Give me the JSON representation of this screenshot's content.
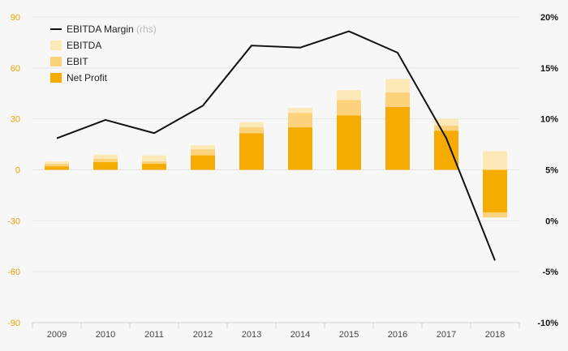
{
  "chart_data": {
    "type": "bar",
    "categories": [
      "2009",
      "2010",
      "2011",
      "2012",
      "2013",
      "2014",
      "2015",
      "2016",
      "2017",
      "2018"
    ],
    "series": [
      {
        "name": "EBITDA",
        "type": "bar",
        "axis": "left",
        "values": [
          5,
          9,
          8.5,
          14.5,
          28,
          36.5,
          47,
          53.5,
          30,
          11
        ],
        "negative_values": [
          0,
          0,
          0,
          0,
          0,
          0,
          0,
          0,
          0,
          -28
        ]
      },
      {
        "name": "EBIT",
        "type": "bar",
        "axis": "left",
        "values": [
          3.5,
          6.5,
          5,
          12,
          25,
          33.5,
          41,
          45.5,
          26,
          0
        ],
        "negative_values": [
          0,
          0,
          0,
          0,
          0,
          0,
          0,
          0,
          0,
          -28
        ]
      },
      {
        "name": "Net Profit",
        "type": "bar",
        "axis": "left",
        "values": [
          2,
          4.5,
          3.5,
          8.5,
          21.5,
          25,
          32,
          37,
          23,
          0
        ],
        "negative_values": [
          0,
          0,
          0,
          0,
          0,
          0,
          0,
          0,
          0,
          -25
        ]
      },
      {
        "name": "EBITDA Margin",
        "type": "line",
        "axis": "right",
        "values": [
          8.1,
          9.9,
          8.6,
          11.3,
          17.2,
          17.0,
          18.6,
          16.5,
          8.1,
          -3.9
        ]
      }
    ],
    "legend": {
      "placement": "top-left",
      "items": [
        {
          "label": "EBITDA Margin",
          "note": "(rhs)",
          "kind": "line",
          "color": "#111111"
        },
        {
          "label": "EBITDA",
          "kind": "box",
          "color": "#fde8b8"
        },
        {
          "label": "EBIT",
          "kind": "box",
          "color": "#fcd27a"
        },
        {
          "label": "Net Profit",
          "kind": "box",
          "color": "#f5ab00"
        }
      ]
    },
    "y_left": {
      "min": -90,
      "max": 90,
      "ticks": [
        90,
        60,
        30,
        0,
        -30,
        -60,
        -90
      ],
      "tick_labels": [
        "90",
        "60",
        "30",
        "0",
        "-30",
        "-60",
        "-90"
      ]
    },
    "y_right": {
      "min": -10,
      "max": 20,
      "ticks": [
        20,
        15,
        10,
        5,
        0,
        -5,
        -10
      ],
      "tick_labels": [
        "20%",
        "15%",
        "10%",
        "5%",
        "0%",
        "-5%",
        "-10%"
      ]
    },
    "grid": true,
    "colors": {
      "ebitda": "#fde8b8",
      "ebit": "#fcd27a",
      "net_profit": "#f5ab00",
      "margin_line": "#111111",
      "grid": "#e6e6e6"
    },
    "title": "",
    "xlabel": "",
    "ylabel": ""
  }
}
